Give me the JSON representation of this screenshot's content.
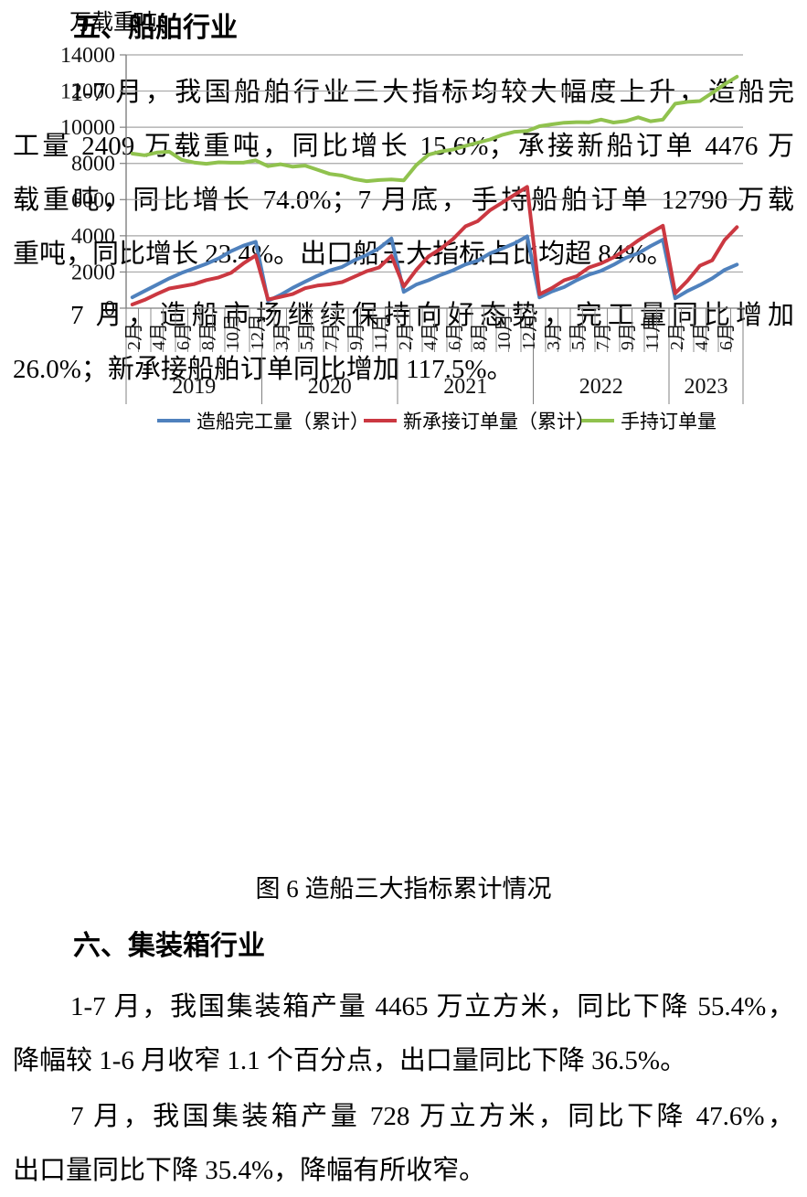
{
  "section_ship": {
    "heading": "五、船舶行业",
    "para1": [
      {
        "text": "1-7 月，我国船舶行业三大指标均较大幅度上升，造船完",
        "indent": true,
        "justify": true
      },
      {
        "text": "工量 2409 万载重吨，同比增长 15.6%；承接新船订单 4476 万",
        "indent": false,
        "justify": true
      },
      {
        "text": "载重吨，同比增长 74.0%；7 月底，手持船舶订单 12790 万载",
        "indent": false,
        "justify": true
      },
      {
        "text": "重吨，同比增长 23.4%。出口船三大指标占比均超 84%。",
        "indent": false,
        "justify": false
      }
    ],
    "para2": [
      {
        "text": "7 月，造船市场继续保持向好态势，完工量同比增加",
        "indent": true,
        "justify": true
      },
      {
        "text": "26.0%；新承接船舶订单同比增加 117.5%。",
        "indent": false,
        "justify": false
      }
    ]
  },
  "figure": {
    "caption": "图 6 造船三大指标累计情况"
  },
  "section_container": {
    "heading": "六、集装箱行业",
    "para1": [
      {
        "text": "1-7 月，我国集装箱产量 4465 万立方米，同比下降 55.4%，",
        "indent": true,
        "justify": true
      },
      {
        "text": "降幅较 1-6 月收窄 1.1 个百分点，出口量同比下降 36.5%。",
        "indent": false,
        "justify": false
      }
    ],
    "para2": [
      {
        "text": "7 月，我国集装箱产量 728 万立方米，同比下降 47.6%，",
        "indent": true,
        "justify": true
      },
      {
        "text": "出口量同比下降 35.4%，降幅有所收窄。",
        "indent": false,
        "justify": false
      }
    ]
  },
  "chart_data": {
    "type": "line",
    "unit_label": "万载重吨",
    "ylim": [
      0,
      14000
    ],
    "y_ticks": [
      0,
      2000,
      4000,
      6000,
      8000,
      10000,
      12000,
      14000
    ],
    "grid": true,
    "legend_position": "bottom",
    "grid_color": "#A6A6A6",
    "axis_color": "#808080",
    "year_groups": [
      {
        "year": "2019",
        "months": [
          "2月",
          "3月",
          "4月",
          "5月",
          "6月",
          "7月",
          "8月",
          "9月",
          "10月",
          "11月",
          "12月"
        ]
      },
      {
        "year": "2020",
        "months": [
          "2月",
          "3月",
          "4月",
          "5月",
          "6月",
          "7月",
          "8月",
          "9月",
          "10月",
          "11月",
          "12月"
        ]
      },
      {
        "year": "2021",
        "months": [
          "2月",
          "3月",
          "4月",
          "5月",
          "6月",
          "7月",
          "8月",
          "9月",
          "10月",
          "11月",
          "12月"
        ]
      },
      {
        "year": "2022",
        "months": [
          "2月",
          "3月",
          "4月",
          "5月",
          "6月",
          "7月",
          "8月",
          "9月",
          "10月",
          "11月",
          "12月"
        ]
      },
      {
        "year": "2023",
        "months": [
          "2月",
          "3月",
          "4月",
          "5月",
          "6月",
          "7月"
        ]
      }
    ],
    "series": [
      {
        "name": "造船完工量（累计）",
        "color": "#4F81BD",
        "values": [
          600,
          950,
          1300,
          1650,
          1950,
          2200,
          2450,
          2750,
          3150,
          3450,
          3670,
          400,
          730,
          1120,
          1460,
          1790,
          2080,
          2280,
          2650,
          2940,
          3310,
          3850,
          900,
          1300,
          1543,
          1841,
          2092,
          2418,
          2626,
          3034,
          3302,
          3588,
          3970,
          595,
          926,
          1170,
          1540,
          1850,
          2065,
          2394,
          2780,
          3031,
          3434,
          3786,
          544,
          948,
          1280,
          1647,
          2113,
          2409
        ]
      },
      {
        "name": "新承接订单量（累计）",
        "color": "#CB3841",
        "values": [
          200,
          460,
          790,
          1085,
          1210,
          1330,
          1550,
          1700,
          1950,
          2470,
          2910,
          480,
          620,
          780,
          1100,
          1250,
          1320,
          1440,
          1740,
          2040,
          2250,
          2890,
          1200,
          2100,
          2854,
          3283,
          3824,
          4522,
          4814,
          5416,
          5845,
          6277,
          6707,
          768,
          1106,
          1540,
          1760,
          2246,
          2477,
          2805,
          3245,
          3740,
          4164,
          4552,
          825,
          1518,
          2347,
          2645,
          3767,
          4476
        ]
      },
      {
        "name": "手持订单量",
        "color": "#90C24E",
        "values": [
          8540,
          8450,
          8600,
          8650,
          8200,
          8050,
          7980,
          8060,
          8040,
          8040,
          8170,
          7850,
          7955,
          7820,
          7880,
          7650,
          7420,
          7330,
          7130,
          7020,
          7080,
          7110,
          7060,
          7900,
          8480,
          8660,
          8770,
          8967,
          9147,
          9327,
          9583,
          9747,
          9790,
          10060,
          10160,
          10250,
          10280,
          10270,
          10420,
          10260,
          10340,
          10550,
          10330,
          10420,
          11300,
          11400,
          11450,
          11900,
          12377,
          12790
        ]
      }
    ]
  }
}
